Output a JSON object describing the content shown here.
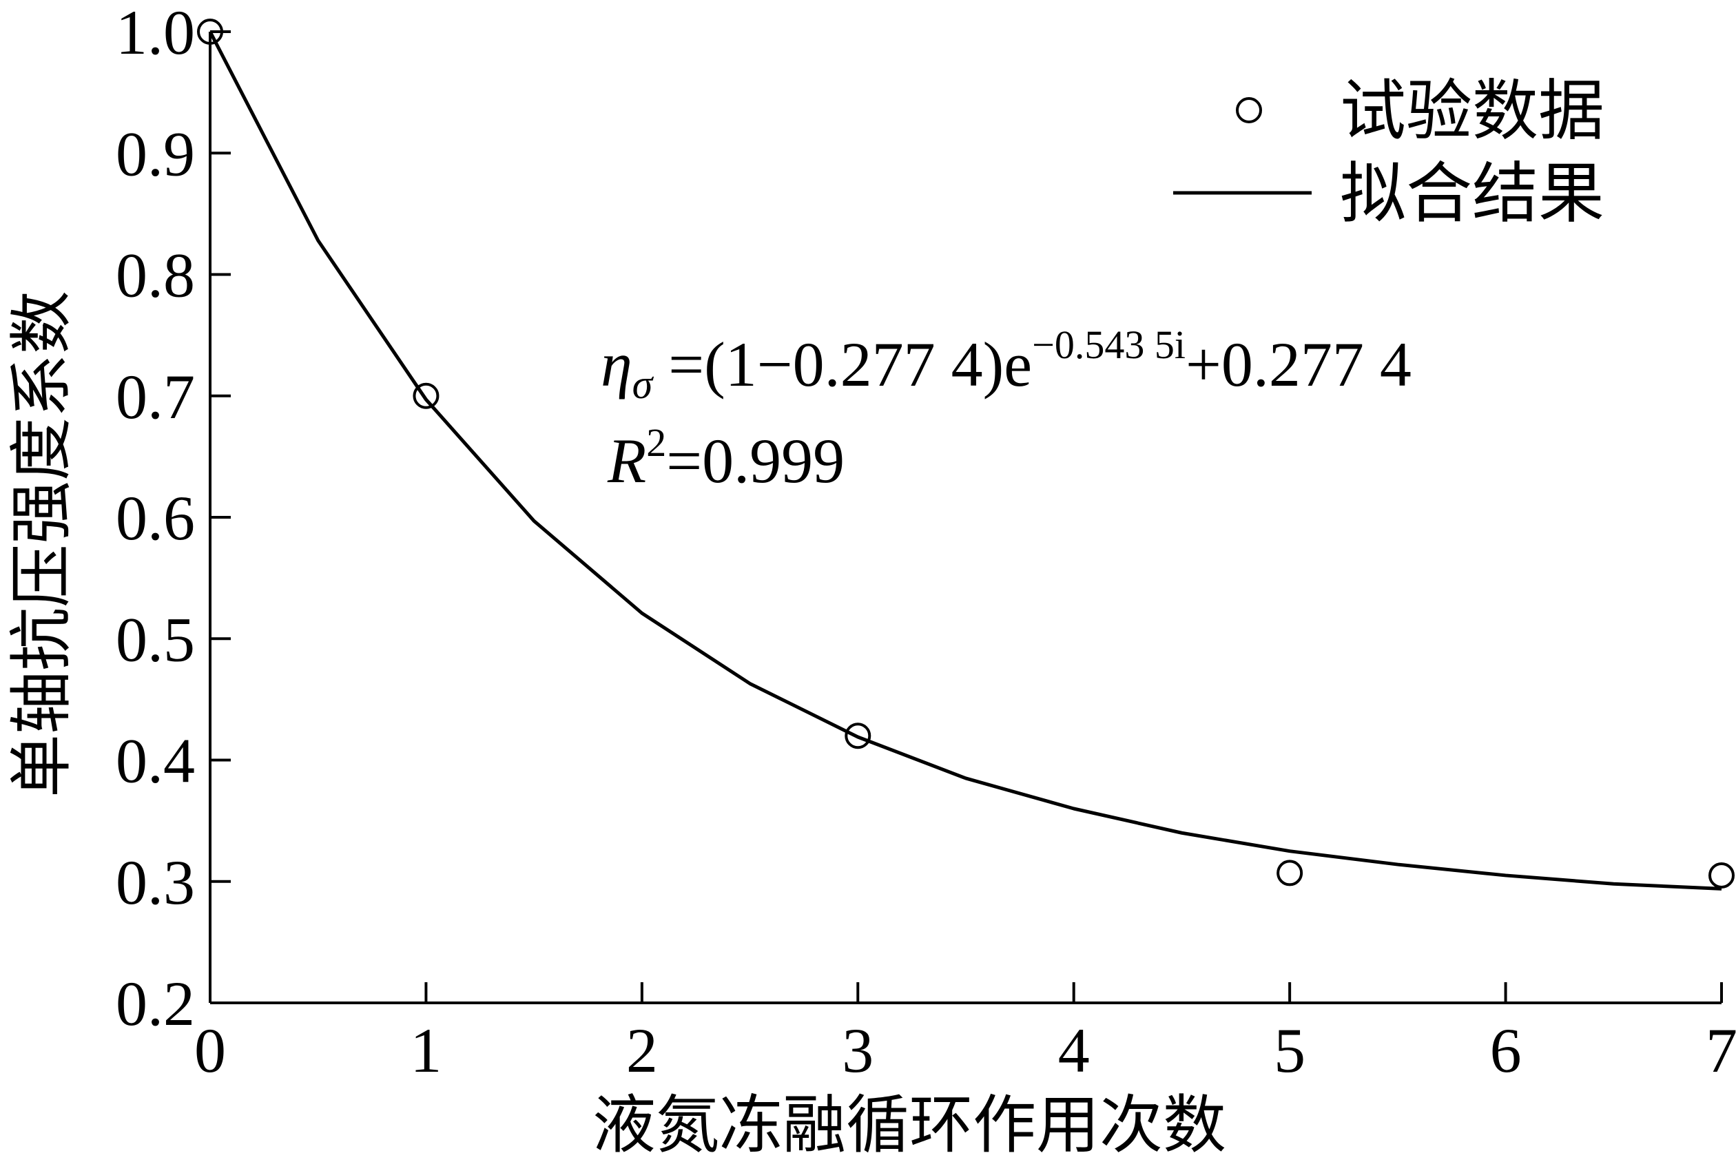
{
  "chart_data": {
    "type": "scatter",
    "x_label": "液氮冻融循环作用次数",
    "y_label": "单轴抗压强度系数",
    "xlim": [
      0,
      7
    ],
    "ylim": [
      0.2,
      1.0
    ],
    "xticks": [
      0,
      1,
      2,
      3,
      4,
      5,
      6,
      7
    ],
    "yticks": [
      {
        "value": 0.2,
        "label": "0.2"
      },
      {
        "value": 0.3,
        "label": "0.3"
      },
      {
        "value": 0.4,
        "label": "0.4"
      },
      {
        "value": 0.5,
        "label": "0.5"
      },
      {
        "value": 0.6,
        "label": "0.6"
      },
      {
        "value": 0.7,
        "label": "0.7"
      },
      {
        "value": 0.8,
        "label": "0.8"
      },
      {
        "value": 0.9,
        "label": "0.9"
      },
      {
        "value": 1.0,
        "label": "1.0"
      }
    ],
    "series": [
      {
        "name": "试验数据",
        "color": "#000000",
        "marker": "open-circle",
        "x": [
          0,
          1,
          3,
          5,
          7
        ],
        "values": [
          1.0,
          0.7,
          0.42,
          0.307,
          0.305
        ]
      },
      {
        "name": "拟合结果",
        "color": "#000000",
        "marker": "line",
        "x": [
          0,
          0.5,
          1,
          1.5,
          2,
          2.5,
          3,
          3.5,
          4,
          4.5,
          5,
          5.5,
          6,
          6.5,
          7
        ],
        "values": [
          1.0,
          0.828,
          0.697,
          0.597,
          0.521,
          0.463,
          0.419,
          0.385,
          0.36,
          0.34,
          0.325,
          0.314,
          0.305,
          0.298,
          0.294
        ]
      }
    ],
    "equation": {
      "lhs": "η",
      "lhs_sub": "σ",
      "body": " =(1−0.277 4)e",
      "exp": "−0.543 5i",
      "tail": "+0.277 4"
    },
    "r_squared": {
      "base": "R",
      "sup": "2",
      "body": "=0.999"
    },
    "legend_position": "upper right"
  }
}
